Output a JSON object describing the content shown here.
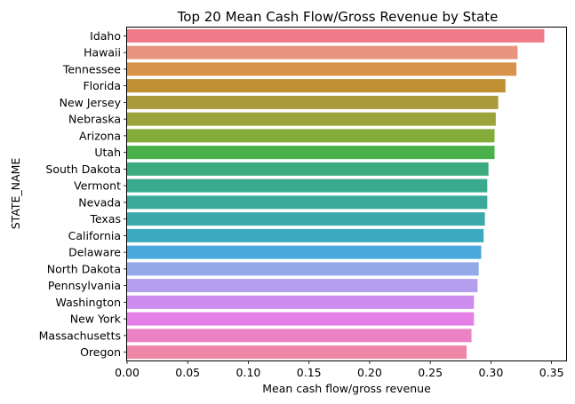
{
  "chart_data": {
    "type": "bar",
    "orientation": "horizontal",
    "title": "Top 20 Mean Cash Flow/Gross Revenue by State",
    "xlabel": "Mean cash flow/gross revenue",
    "ylabel": "STATE_NAME",
    "xlim": [
      0,
      0.362
    ],
    "xticks": [
      "0.00",
      "0.05",
      "0.10",
      "0.15",
      "0.20",
      "0.25",
      "0.30",
      "0.35"
    ],
    "grid": false,
    "categories": [
      "Idaho",
      "Hawaii",
      "Tennessee",
      "Florida",
      "New Jersey",
      "Nebraska",
      "Arizona",
      "Utah",
      "South Dakota",
      "Vermont",
      "Nevada",
      "Texas",
      "California",
      "Delaware",
      "North Dakota",
      "Pennsylvania",
      "Washington",
      "New York",
      "Massachusetts",
      "Oregon"
    ],
    "values": [
      0.344,
      0.322,
      0.321,
      0.312,
      0.306,
      0.304,
      0.303,
      0.303,
      0.298,
      0.297,
      0.297,
      0.295,
      0.294,
      0.292,
      0.29,
      0.289,
      0.286,
      0.286,
      0.284,
      0.28
    ],
    "colors": [
      "#f07b88",
      "#e8957f",
      "#d8934b",
      "#bf8f31",
      "#ab9a3b",
      "#9ba43b",
      "#83ac3a",
      "#49b04b",
      "#3cac80",
      "#3aaa8f",
      "#3aa99a",
      "#3ca8aa",
      "#3da9bf",
      "#4ba8dc",
      "#93a9e8",
      "#b69eee",
      "#cd8cf0",
      "#e480e5",
      "#eb82c5",
      "#ee86a8"
    ]
  }
}
